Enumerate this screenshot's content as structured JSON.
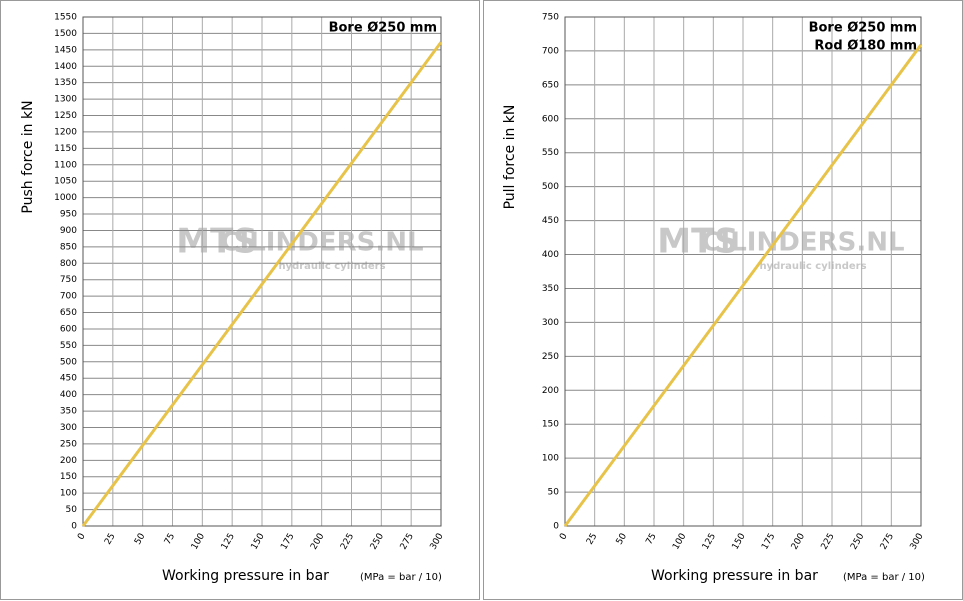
{
  "chart_data": [
    {
      "type": "line",
      "x": [
        0,
        300
      ],
      "values": [
        0,
        1473
      ],
      "color": "#e8c34a",
      "xlim": [
        0,
        300
      ],
      "xticks": [
        0,
        25,
        50,
        75,
        100,
        125,
        150,
        175,
        200,
        225,
        250,
        275,
        300
      ],
      "ylim": [
        0,
        1550
      ],
      "yticks": [
        0,
        50,
        100,
        150,
        200,
        250,
        300,
        350,
        400,
        450,
        500,
        550,
        600,
        650,
        700,
        750,
        800,
        850,
        900,
        950,
        1000,
        1050,
        1100,
        1150,
        1200,
        1250,
        1300,
        1350,
        1400,
        1450,
        1500,
        1550
      ],
      "grid": true,
      "x_label": "Working pressure in bar",
      "x_note": "(MPa = bar / 10)",
      "y_label": "Push force in kN",
      "annotations": [
        "Bore Ø250 mm"
      ],
      "watermark": [
        "MTS",
        "CILINDERS.NL",
        "hydraulic cylinders"
      ]
    },
    {
      "type": "line",
      "x": [
        0,
        300
      ],
      "values": [
        0,
        709
      ],
      "color": "#e8c34a",
      "xlim": [
        0,
        300
      ],
      "xticks": [
        0,
        25,
        50,
        75,
        100,
        125,
        150,
        175,
        200,
        225,
        250,
        275,
        300
      ],
      "ylim": [
        0,
        750
      ],
      "yticks": [
        0,
        50,
        100,
        150,
        200,
        250,
        300,
        350,
        400,
        450,
        500,
        550,
        600,
        650,
        700,
        750
      ],
      "grid": true,
      "x_label": "Working pressure in bar",
      "x_note": "(MPa = bar / 10)",
      "y_label": "Pull force in kN",
      "annotations": [
        "Bore Ø250 mm",
        "Rod Ø180 mm"
      ],
      "watermark": [
        "MTS",
        "CILINDERS.NL",
        "hydraulic cylinders"
      ]
    }
  ]
}
